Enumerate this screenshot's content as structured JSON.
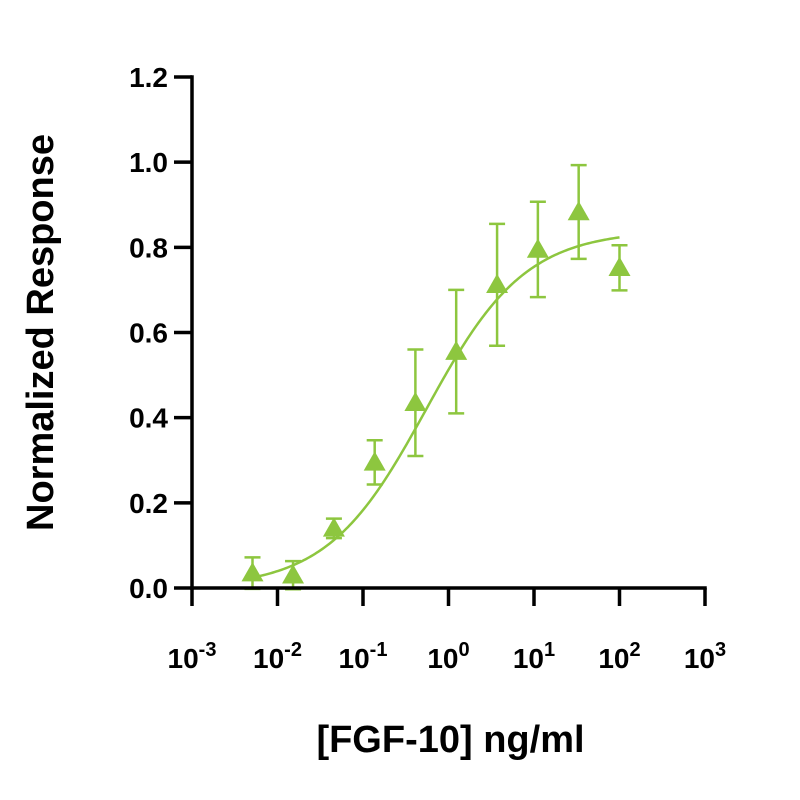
{
  "chart_data": {
    "type": "scatter",
    "xscale": "log",
    "xlabel": "[FGF-10] ng/ml",
    "ylabel": "Normalized Response",
    "xlim": [
      0.001,
      1000
    ],
    "ylim": [
      0,
      1.2
    ],
    "x_ticks": [
      {
        "value": 0.001,
        "base": "10",
        "exp": "-3"
      },
      {
        "value": 0.01,
        "base": "10",
        "exp": "-2"
      },
      {
        "value": 0.1,
        "base": "10",
        "exp": "-1"
      },
      {
        "value": 1,
        "base": "10",
        "exp": "0"
      },
      {
        "value": 10,
        "base": "10",
        "exp": "1"
      },
      {
        "value": 100,
        "base": "10",
        "exp": "2"
      },
      {
        "value": 1000,
        "base": "10",
        "exp": "3"
      }
    ],
    "y_ticks": [
      {
        "value": 0,
        "label": "0.0"
      },
      {
        "value": 0.2,
        "label": "0.2"
      },
      {
        "value": 0.4,
        "label": "0.4"
      },
      {
        "value": 0.6,
        "label": "0.6"
      },
      {
        "value": 0.8,
        "label": "0.8"
      },
      {
        "value": 1.0,
        "label": "1.0"
      },
      {
        "value": 1.2,
        "label": "1.2"
      }
    ],
    "series": [
      {
        "marker": "triangle",
        "color": "#8DC63F",
        "points": [
          {
            "x": 0.0051,
            "y": 0.035,
            "err": 0.037
          },
          {
            "x": 0.0152,
            "y": 0.03,
            "err": 0.033
          },
          {
            "x": 0.0457,
            "y": 0.14,
            "err": 0.023
          },
          {
            "x": 0.137,
            "y": 0.295,
            "err": 0.052
          },
          {
            "x": 0.41,
            "y": 0.435,
            "err": 0.125
          },
          {
            "x": 1.23,
            "y": 0.555,
            "err": 0.145
          },
          {
            "x": 3.7,
            "y": 0.712,
            "err": 0.143
          },
          {
            "x": 11.1,
            "y": 0.795,
            "err": 0.112
          },
          {
            "x": 33.3,
            "y": 0.883,
            "err": 0.11
          },
          {
            "x": 100,
            "y": 0.752,
            "err": 0.053
          }
        ]
      }
    ],
    "fit": {
      "model": "4PL",
      "bottom": 0.0,
      "top": 0.84,
      "ec50": 0.55,
      "hill": 0.75,
      "x_range": [
        0.0051,
        100
      ]
    }
  }
}
